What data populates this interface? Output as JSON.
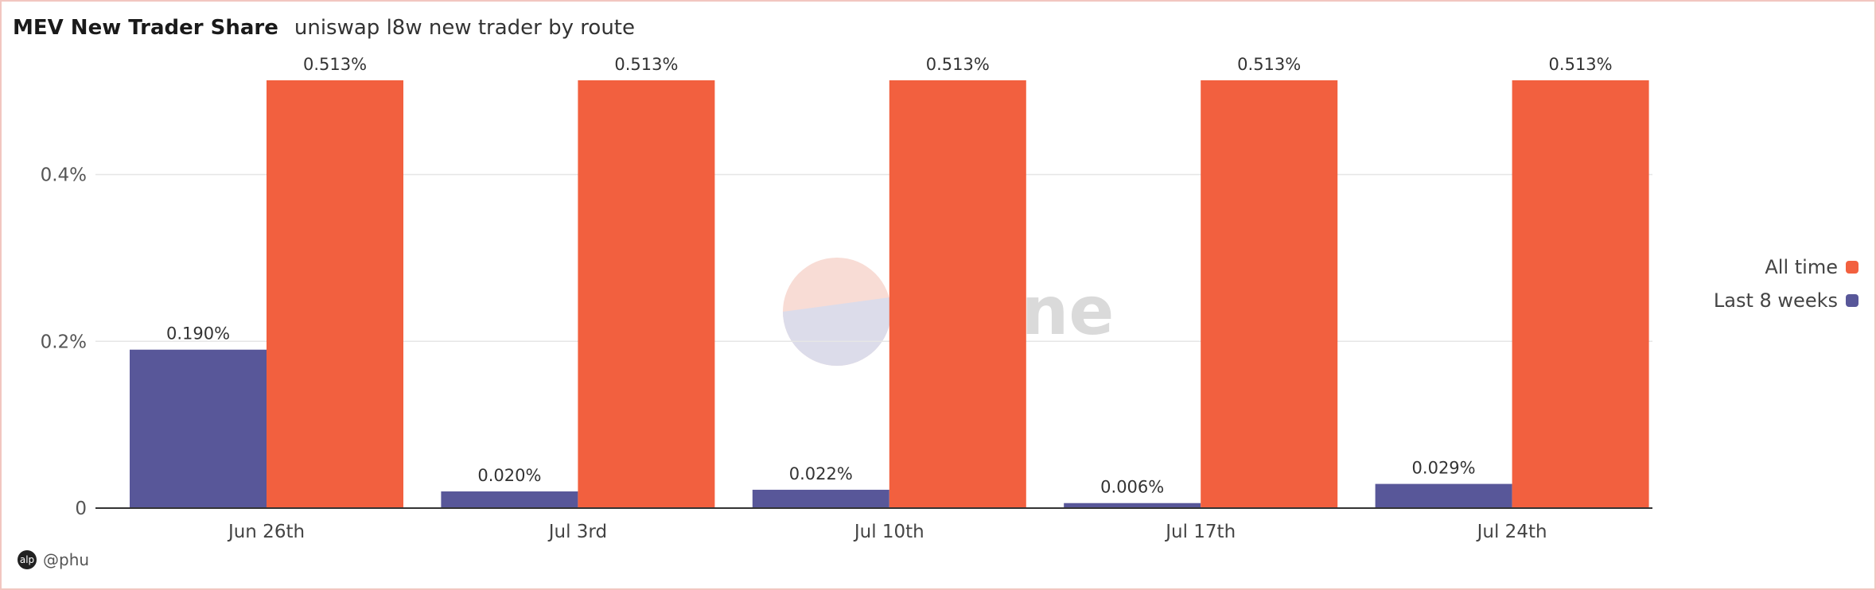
{
  "header": {
    "title": "MEV New Trader Share",
    "subtitle": "uniswap l8w new trader by route"
  },
  "credit": {
    "icon": "user-avatar-icon",
    "handle": "@phu"
  },
  "watermark": {
    "text": "Dune",
    "icon": "dune-logo-icon"
  },
  "colors": {
    "last_8_weeks": "#585799",
    "all_time": "#f2603f",
    "grid": "#e6e6e6",
    "axis": "#333333"
  },
  "chart_data": {
    "type": "bar",
    "categories": [
      "Jun 26th",
      "Jul 3rd",
      "Jul 10th",
      "Jul 17th",
      "Jul 24th"
    ],
    "series": [
      {
        "name": "Last 8 weeks",
        "values": [
          0.19,
          0.02,
          0.022,
          0.006,
          0.029
        ],
        "labels": [
          "0.190%",
          "0.020%",
          "0.022%",
          "0.006%",
          "0.029%"
        ]
      },
      {
        "name": "All time",
        "values": [
          0.513,
          0.513,
          0.513,
          0.513,
          0.513
        ],
        "labels": [
          "0.513%",
          "0.513%",
          "0.513%",
          "0.513%",
          "0.513%"
        ]
      }
    ],
    "ylim": [
      0,
      0.513
    ],
    "yticks": [
      0,
      0.2,
      0.4
    ],
    "ytick_labels": [
      "0",
      "0.2%",
      "0.4%"
    ],
    "grid": true,
    "legend": "right",
    "legend_items": [
      "All time",
      "Last 8 weeks"
    ]
  }
}
